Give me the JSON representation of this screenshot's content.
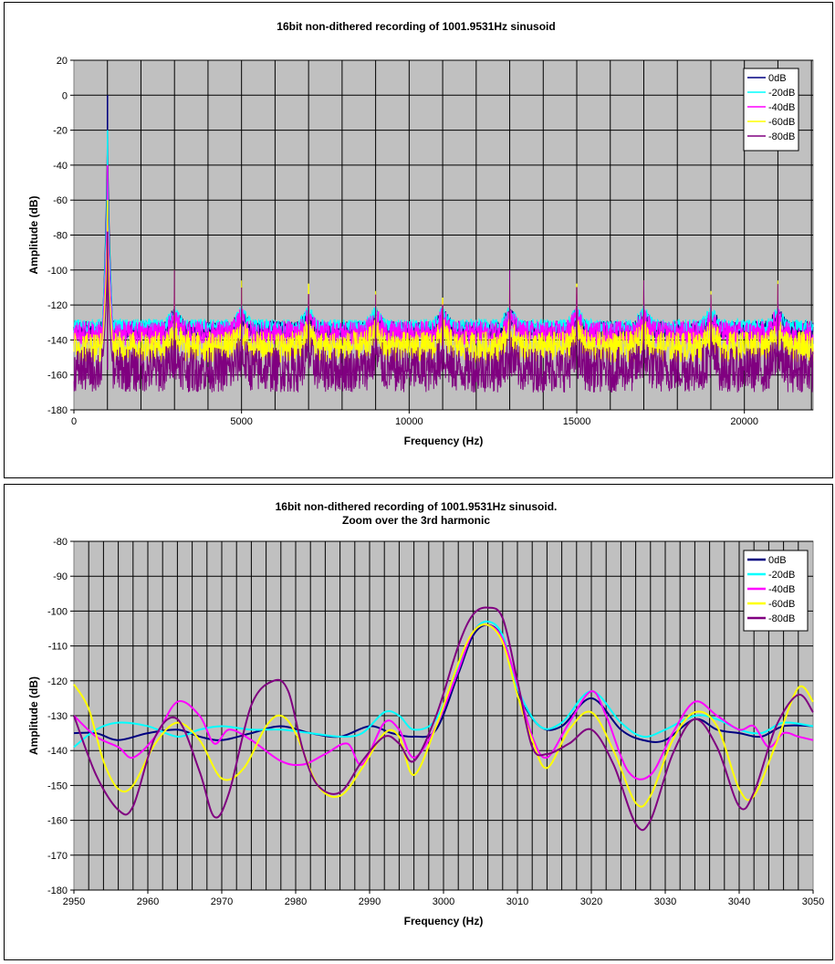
{
  "chart_data": [
    {
      "type": "line",
      "title": "16bit non-dithered recording of 1001.9531Hz sinusoid",
      "xlabel": "Frequency (Hz)",
      "ylabel": "Amplitude (dB)",
      "xlim": [
        0,
        22050
      ],
      "ylim": [
        -180,
        20
      ],
      "xticks": [
        0,
        5000,
        10000,
        15000,
        20000
      ],
      "xtick_labels": [
        "0",
        "5000",
        "10000",
        "15000",
        "20000"
      ],
      "yticks": [
        20,
        0,
        -20,
        -40,
        -60,
        -80,
        -100,
        -120,
        -140,
        -160,
        -180
      ],
      "ytick_labels": [
        "20",
        "0",
        "-20",
        "-40",
        "-60",
        "-80",
        "-100",
        "-120",
        "-140",
        "-160",
        "-180"
      ],
      "vgrid_step": 1000,
      "grid": true,
      "background": "#c0c0c0",
      "legend_position": "top-right",
      "series": [
        {
          "name": "0dB",
          "color": "#000080",
          "noise_floor": -134,
          "noise_spread": 5,
          "fundamental_peak": 0,
          "harmonic_peaks": [
            [
              3000,
              -124
            ],
            [
              5000,
              -128
            ],
            [
              7000,
              -128
            ],
            [
              9000,
              -128
            ],
            [
              11000,
              -126
            ],
            [
              13000,
              -122
            ],
            [
              15000,
              -124
            ],
            [
              17000,
              -122
            ],
            [
              19000,
              -126
            ],
            [
              21000,
              -124
            ]
          ]
        },
        {
          "name": "-20dB",
          "color": "#00ffff",
          "noise_floor": -132,
          "noise_spread": 4,
          "fundamental_peak": -20,
          "harmonic_peaks": [
            [
              3000,
              -124
            ],
            [
              5000,
              -127
            ],
            [
              7000,
              -127
            ],
            [
              9000,
              -127
            ],
            [
              11000,
              -126
            ],
            [
              13000,
              -122
            ],
            [
              15000,
              -124
            ],
            [
              17000,
              -122
            ],
            [
              19000,
              -126
            ],
            [
              21000,
              -124
            ]
          ]
        },
        {
          "name": "-40dB",
          "color": "#ff00ff",
          "noise_floor": -136,
          "noise_spread": 7,
          "fundamental_peak": -40,
          "harmonic_peaks": [
            [
              3000,
              -110
            ],
            [
              5000,
              -120
            ],
            [
              7000,
              -118
            ],
            [
              9000,
              -120
            ],
            [
              11000,
              -118
            ],
            [
              13000,
              -112
            ],
            [
              15000,
              -114
            ],
            [
              17000,
              -112
            ],
            [
              19000,
              -116
            ],
            [
              21000,
              -112
            ]
          ]
        },
        {
          "name": "-60dB",
          "color": "#ffff00",
          "noise_floor": -144,
          "noise_spread": 9,
          "fundamental_peak": -60,
          "harmonic_peaks": [
            [
              3000,
              -100
            ],
            [
              5000,
              -106
            ],
            [
              7000,
              -108
            ],
            [
              9000,
              -112
            ],
            [
              11000,
              -116
            ],
            [
              13000,
              -104
            ],
            [
              15000,
              -108
            ],
            [
              17000,
              -106
            ],
            [
              19000,
              -112
            ],
            [
              21000,
              -106
            ]
          ]
        },
        {
          "name": "-80dB",
          "color": "#800080",
          "noise_floor": -157,
          "noise_spread": 13,
          "fundamental_peak": -78,
          "harmonic_peaks": [
            [
              3000,
              -100
            ],
            [
              5000,
              -110
            ],
            [
              7000,
              -114
            ],
            [
              9000,
              -114
            ],
            [
              11000,
              -120
            ],
            [
              13000,
              -100
            ],
            [
              15000,
              -110
            ],
            [
              17000,
              -106
            ],
            [
              19000,
              -114
            ],
            [
              21000,
              -108
            ]
          ]
        }
      ]
    },
    {
      "type": "line",
      "title": "16bit non-dithered recording of 1001.9531Hz sinusoid.\nZoom over the 3rd harmonic",
      "title_lines": [
        "16bit non-dithered recording of 1001.9531Hz sinusoid.",
        "Zoom over the 3rd harmonic"
      ],
      "xlabel": "Frequency (Hz)",
      "ylabel": "Amplitude (dB)",
      "xlim": [
        2950,
        3050
      ],
      "ylim": [
        -180,
        -80
      ],
      "xticks": [
        2950,
        2960,
        2970,
        2980,
        2990,
        3000,
        3010,
        3020,
        3030,
        3040,
        3050
      ],
      "xtick_labels": [
        "2950",
        "2960",
        "2970",
        "2980",
        "2990",
        "3000",
        "3010",
        "3020",
        "3030",
        "3040",
        "3050"
      ],
      "yticks": [
        -80,
        -90,
        -100,
        -110,
        -120,
        -130,
        -140,
        -150,
        -160,
        -170,
        -180
      ],
      "ytick_labels": [
        "-80",
        "-90",
        "-100",
        "-110",
        "-120",
        "-130",
        "-140",
        "-150",
        "-160",
        "-170",
        "-180"
      ],
      "vgrid_step": 2,
      "grid": true,
      "background": "#c0c0c0",
      "legend_position": "top-right",
      "series": [
        {
          "name": "0dB",
          "color": "#000080",
          "x": [
            2950,
            2953,
            2956,
            2960,
            2964,
            2967,
            2970,
            2974,
            2978,
            2982,
            2986,
            2990,
            2993,
            2996,
            2999,
            3002,
            3004,
            3006,
            3008,
            3010,
            3013,
            3016,
            3020,
            3024,
            3027,
            3030,
            3034,
            3037,
            3040,
            3043,
            3046,
            3050
          ],
          "y": [
            -135,
            -135,
            -137,
            -135,
            -134,
            -136,
            -137,
            -135,
            -133,
            -135,
            -136,
            -133,
            -135,
            -136,
            -134,
            -118,
            -107,
            -104,
            -108,
            -123,
            -133,
            -133,
            -125,
            -134,
            -137,
            -137,
            -131,
            -134,
            -135,
            -136,
            -133,
            -133
          ]
        },
        {
          "name": "-20dB",
          "color": "#00ffff",
          "x": [
            2950,
            2953,
            2956,
            2960,
            2964,
            2967,
            2970,
            2974,
            2978,
            2982,
            2986,
            2989,
            2992,
            2994,
            2996,
            2999,
            3002,
            3004,
            3006,
            3008,
            3010,
            3013,
            3016,
            3020,
            3024,
            3027,
            3030,
            3034,
            3037,
            3040,
            3043,
            3046,
            3050
          ],
          "y": [
            -139,
            -134,
            -132,
            -133,
            -136,
            -134,
            -133,
            -134,
            -134,
            -135,
            -136,
            -135,
            -129,
            -130,
            -134,
            -131,
            -116,
            -106,
            -103,
            -107,
            -122,
            -133,
            -132,
            -123,
            -132,
            -136,
            -134,
            -130,
            -131,
            -134,
            -135,
            -132,
            -133
          ]
        },
        {
          "name": "-40dB",
          "color": "#ff00ff",
          "x": [
            2950,
            2953,
            2956,
            2958,
            2961,
            2964,
            2967,
            2969,
            2971,
            2974,
            2978,
            2981,
            2984,
            2987,
            2989,
            2992,
            2994,
            2996,
            2999,
            3002,
            3004,
            3006,
            3008,
            3010,
            3012,
            3014,
            3017,
            3020,
            3022,
            3025,
            3028,
            3031,
            3034,
            3037,
            3040,
            3042,
            3044,
            3046,
            3048,
            3050
          ],
          "y": [
            -130,
            -136,
            -139,
            -142,
            -136,
            -126,
            -130,
            -138,
            -134,
            -137,
            -143,
            -144,
            -141,
            -138,
            -144,
            -132,
            -134,
            -142,
            -133,
            -117,
            -106,
            -104,
            -108,
            -121,
            -136,
            -142,
            -132,
            -123,
            -130,
            -146,
            -147,
            -135,
            -126,
            -130,
            -134,
            -133,
            -139,
            -135,
            -136,
            -137
          ]
        },
        {
          "name": "-60dB",
          "color": "#ffff00",
          "x": [
            2950,
            2952,
            2954,
            2956,
            2958,
            2961,
            2964,
            2967,
            2970,
            2973,
            2976,
            2978,
            2980,
            2983,
            2986,
            2989,
            2992,
            2994,
            2996,
            2999,
            3002,
            3004,
            3006,
            3008,
            3010,
            3012,
            3014,
            3017,
            3020,
            3023,
            3026,
            3028,
            3031,
            3034,
            3037,
            3040,
            3042,
            3045,
            3048,
            3050
          ],
          "y": [
            -121,
            -128,
            -143,
            -151,
            -150,
            -138,
            -132,
            -137,
            -148,
            -145,
            -133,
            -130,
            -135,
            -150,
            -153,
            -145,
            -135,
            -136,
            -147,
            -133,
            -115,
            -106,
            -104,
            -109,
            -124,
            -137,
            -145,
            -134,
            -129,
            -140,
            -155,
            -153,
            -137,
            -129,
            -133,
            -151,
            -153,
            -138,
            -122,
            -126
          ]
        },
        {
          "name": "-80dB",
          "color": "#800080",
          "x": [
            2950,
            2953,
            2956,
            2958,
            2961,
            2964,
            2967,
            2969,
            2971,
            2974,
            2977,
            2979,
            2981,
            2983,
            2986,
            2989,
            2992,
            2994,
            2996,
            2999,
            3002,
            3004,
            3006,
            3008,
            3010,
            3012,
            3014,
            3017,
            3020,
            3023,
            3026,
            3028,
            3031,
            3034,
            3037,
            3040,
            3042,
            3045,
            3048,
            3050
          ],
          "y": [
            -130,
            -147,
            -157,
            -156,
            -136,
            -131,
            -146,
            -159,
            -152,
            -127,
            -120,
            -123,
            -140,
            -150,
            -152,
            -143,
            -136,
            -138,
            -143,
            -130,
            -110,
            -101,
            -99,
            -102,
            -120,
            -139,
            -141,
            -138,
            -134,
            -144,
            -161,
            -160,
            -141,
            -131,
            -139,
            -156,
            -152,
            -133,
            -124,
            -129
          ]
        }
      ]
    }
  ]
}
